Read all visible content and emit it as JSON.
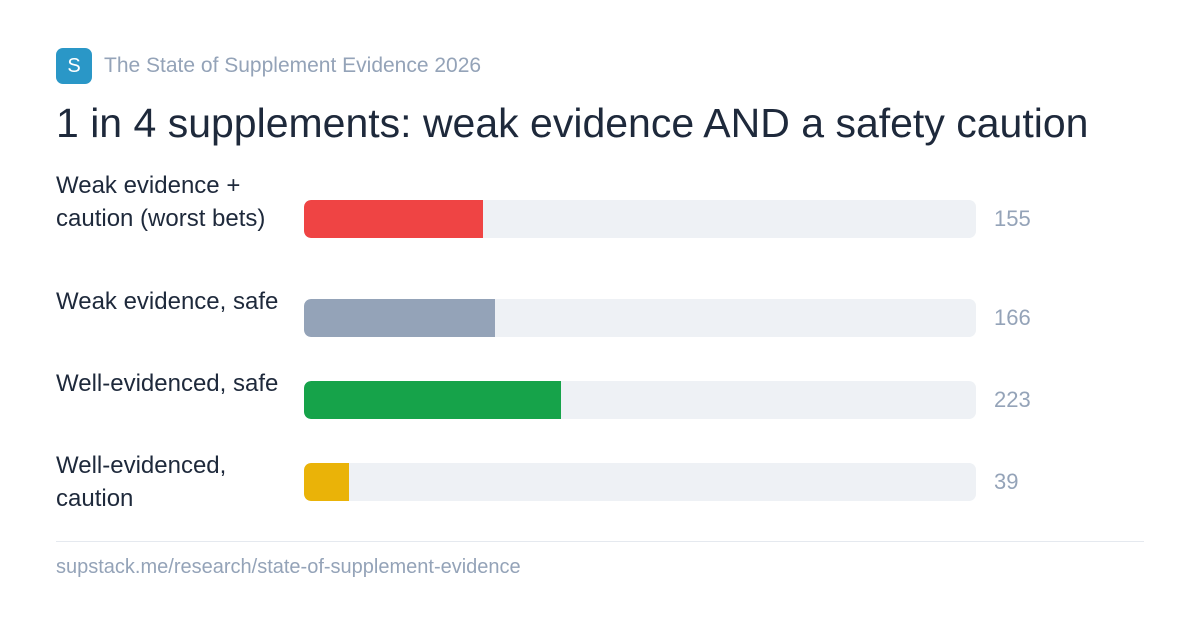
{
  "brand": {
    "logo_letter": "S",
    "name": "The State of Supplement Evidence 2026"
  },
  "footer": {
    "url": "supstack.me/research/state-of-supplement-evidence"
  },
  "chart_data": {
    "type": "bar",
    "orientation": "horizontal",
    "title": "1 in 4 supplements: weak evidence AND a safety caution",
    "categories": [
      "Weak evidence + caution (worst bets)",
      "Weak evidence, safe",
      "Well-evidenced, safe",
      "Well-evidenced, caution"
    ],
    "values": [
      155,
      166,
      223,
      39
    ],
    "colors": [
      "#ef4444",
      "#94a3b8",
      "#16a34a",
      "#eab308"
    ],
    "track_color": "#eef1f5",
    "xlim": [
      0,
      583
    ],
    "grid": false,
    "legend": "none"
  }
}
